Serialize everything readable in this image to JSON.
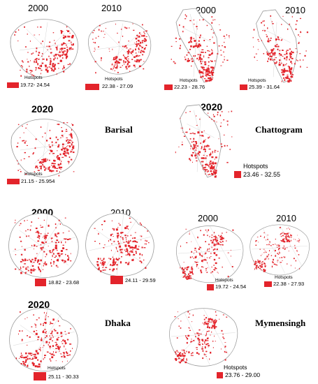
{
  "colors": {
    "hotspot": "#e3242b",
    "outline": "#9a9a9a",
    "background": "#ffffff"
  },
  "divisions": [
    {
      "name": "Barisal",
      "maps": [
        {
          "year": "2000",
          "legend_title": "Hotspots",
          "legend_range": "19.72- 24.54"
        },
        {
          "year": "2010",
          "legend_title": "Hotspots",
          "legend_range": "22.38 - 27.09"
        },
        {
          "year": "2020",
          "legend_title": "Hotspots",
          "legend_range": "21.15 - 25.954"
        }
      ]
    },
    {
      "name": "Chattogram",
      "maps": [
        {
          "year": "2000",
          "legend_title": "Hotspots",
          "legend_range": "22.23 - 28.76"
        },
        {
          "year": "2010",
          "legend_title": "Hotspots",
          "legend_range": "25.39 - 31.64"
        },
        {
          "year": "2020",
          "legend_title": "Hotspots",
          "legend_range": "23.46 - 32.55"
        }
      ]
    },
    {
      "name": "Dhaka",
      "maps": [
        {
          "year": "2000",
          "legend_title": "Hotspots",
          "legend_range": "18.82 - 23.68"
        },
        {
          "year": "2010",
          "legend_title": "Hotspots",
          "legend_range": "24.11 - 29.59"
        },
        {
          "year": "2020",
          "legend_title": "Hotspots",
          "legend_range": "25.11 - 30.33"
        }
      ]
    },
    {
      "name": "Mymensingh",
      "maps": [
        {
          "year": "2000",
          "legend_title": "Hotspots",
          "legend_range": "19.72 - 24.54"
        },
        {
          "year": "2010",
          "legend_title": "Hotspots",
          "legend_range": "22.38 - 27.93"
        },
        {
          "year": "2020",
          "legend_title": "Hotspots",
          "legend_range": "23.76 - 29.00"
        }
      ]
    }
  ]
}
